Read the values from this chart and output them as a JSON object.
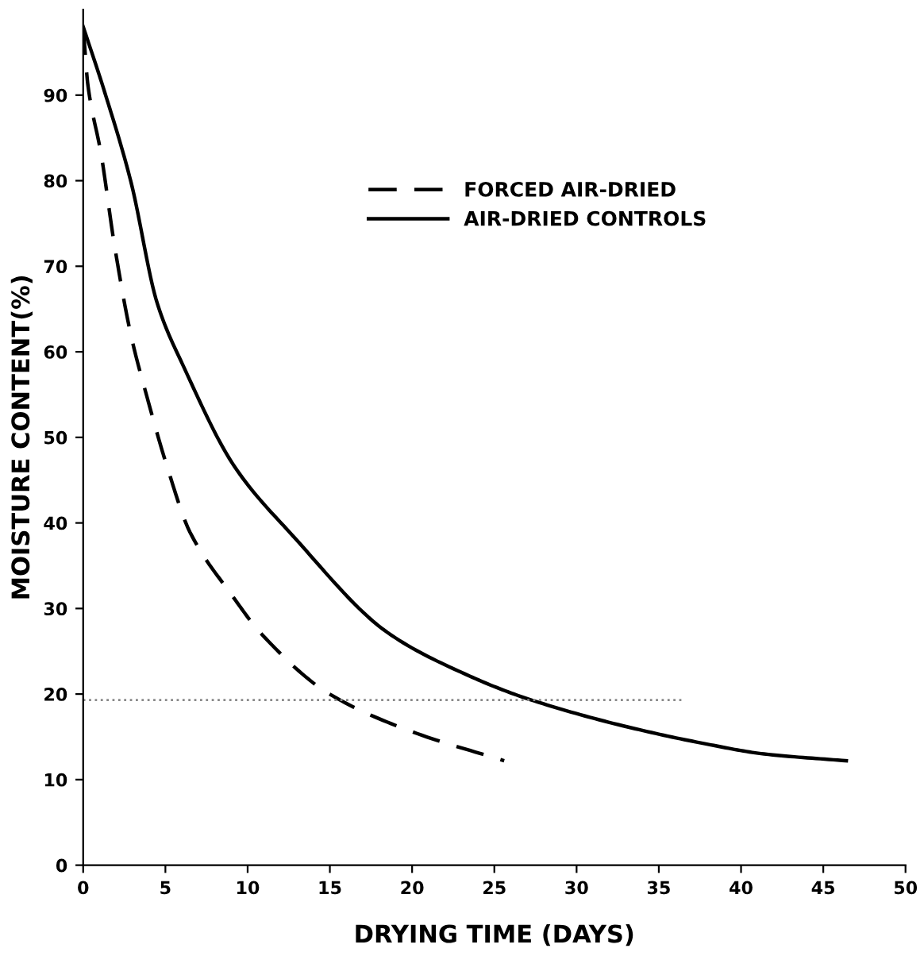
{
  "chart_data": {
    "type": "line",
    "xlabel": "DRYING TIME (DAYS)",
    "ylabel": "MOISTURE CONTENT(%)",
    "xlim": [
      0,
      50
    ],
    "ylim": [
      0,
      100
    ],
    "xticks": [
      0,
      5,
      10,
      15,
      20,
      25,
      30,
      35,
      40,
      45,
      50
    ],
    "yticks": [
      0,
      10,
      20,
      30,
      40,
      50,
      60,
      70,
      80,
      90
    ],
    "grid": false,
    "legend": "top right",
    "marker": "none",
    "series": [
      {
        "name": "FORCED AIR-DRIED",
        "color": "#000000",
        "line_style": "dashed",
        "x": [
          0,
          0.3,
          1.1,
          1.9,
          2.9,
          3.9,
          5.1,
          6.5,
          9.1,
          10.9,
          14.9,
          20,
          25.6
        ],
        "values": [
          98,
          91,
          83,
          72.5,
          62,
          54.6,
          46.6,
          38.9,
          31.4,
          26.9,
          20.1,
          15.6,
          12.2
        ]
      },
      {
        "name": "AIR-DRIED CONTROLS",
        "color": "#000000",
        "line_style": "solid",
        "x": [
          0,
          1.3,
          2.9,
          4.5,
          6.1,
          9.2,
          12.7,
          18.5,
          23.5,
          27.1,
          32.8,
          37.8,
          41.4,
          46.4
        ],
        "values": [
          98,
          90.4,
          79.9,
          65.7,
          58.3,
          46.6,
          38.6,
          27.2,
          22.1,
          19.4,
          16.3,
          14.2,
          13.0,
          12.2
        ]
      },
      {
        "color": "#888888",
        "line_style": "dotted",
        "x": [
          0,
          36.5
        ],
        "values": [
          19.3,
          19.3
        ]
      }
    ]
  }
}
